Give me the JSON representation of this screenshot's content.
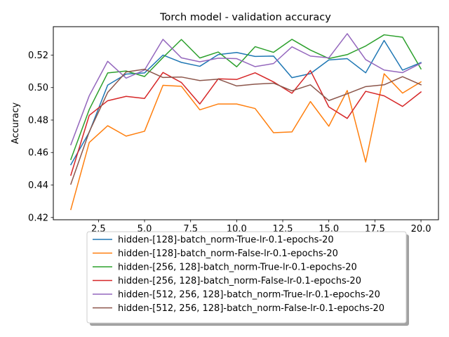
{
  "chart_data": {
    "type": "line",
    "title": "Torch model - validation accuracy",
    "xlabel": "",
    "ylabel": "Accuracy",
    "xlim": [
      0.05,
      20.95
    ],
    "ylim": [
      0.4186,
      0.5375
    ],
    "xticks": [
      2.5,
      5.0,
      7.5,
      10.0,
      12.5,
      15.0,
      17.5,
      20.0
    ],
    "xtick_labels": [
      "2.5",
      "5.0",
      "7.5",
      "10.0",
      "12.5",
      "15.0",
      "17.5",
      "20.0"
    ],
    "yticks": [
      0.42,
      0.44,
      0.46,
      0.48,
      0.5,
      0.52
    ],
    "ytick_labels": [
      "0.42",
      "0.44",
      "0.46",
      "0.48",
      "0.50",
      "0.52"
    ],
    "grid": false,
    "legend_position": "below-center",
    "x": [
      1,
      2,
      3,
      4,
      5,
      6,
      7,
      8,
      9,
      10,
      11,
      12,
      13,
      14,
      15,
      16,
      17,
      18,
      19,
      20
    ],
    "series": [
      {
        "name": "hidden-[128]-batch_norm-True-lr-0.1-epochs-20",
        "color": "#1f77b4",
        "values": [
          0.4525,
          0.4725,
          0.5015,
          0.5083,
          0.509,
          0.52,
          0.5155,
          0.5131,
          0.5203,
          0.5216,
          0.5192,
          0.5194,
          0.5061,
          0.5086,
          0.517,
          0.5178,
          0.5091,
          0.529,
          0.5107,
          0.5154
        ]
      },
      {
        "name": "hidden-[128]-batch_norm-False-lr-0.1-epochs-20",
        "color": "#ff7f0e",
        "values": [
          0.4249,
          0.4662,
          0.4765,
          0.4701,
          0.4731,
          0.5014,
          0.5008,
          0.4863,
          0.4899,
          0.4899,
          0.4871,
          0.4722,
          0.4727,
          0.4914,
          0.4762,
          0.4982,
          0.4541,
          0.5085,
          0.4966,
          0.5035
        ]
      },
      {
        "name": "hidden-[256, 128]-batch_norm-True-lr-0.1-epochs-20",
        "color": "#2ca02c",
        "values": [
          0.4557,
          0.4865,
          0.509,
          0.5102,
          0.5068,
          0.5185,
          0.5296,
          0.5182,
          0.5219,
          0.5128,
          0.5252,
          0.5217,
          0.5297,
          0.5231,
          0.5179,
          0.5203,
          0.5256,
          0.5325,
          0.531,
          0.5115
        ]
      },
      {
        "name": "hidden-[256, 128]-batch_norm-False-lr-0.1-epochs-20",
        "color": "#d62728",
        "values": [
          0.446,
          0.4829,
          0.4919,
          0.4946,
          0.4933,
          0.5093,
          0.5031,
          0.4899,
          0.5054,
          0.505,
          0.5091,
          0.5035,
          0.4965,
          0.5105,
          0.4881,
          0.481,
          0.4977,
          0.4949,
          0.4884,
          0.4973
        ]
      },
      {
        "name": "hidden-[512, 256, 128]-batch_norm-True-lr-0.1-epochs-20",
        "color": "#9467bd",
        "values": [
          0.4648,
          0.495,
          0.5162,
          0.5058,
          0.5108,
          0.5297,
          0.5183,
          0.5159,
          0.5181,
          0.5178,
          0.5129,
          0.5148,
          0.5251,
          0.5194,
          0.5183,
          0.5332,
          0.5172,
          0.5108,
          0.5092,
          0.515
        ]
      },
      {
        "name": "hidden-[512, 256, 128]-batch_norm-False-lr-0.1-epochs-20",
        "color": "#8c564b",
        "values": [
          0.4405,
          0.4728,
          0.497,
          0.5096,
          0.5113,
          0.5062,
          0.5065,
          0.5043,
          0.5052,
          0.501,
          0.5021,
          0.5027,
          0.498,
          0.5017,
          0.492,
          0.4962,
          0.5006,
          0.5017,
          0.5067,
          0.5017
        ]
      }
    ]
  }
}
